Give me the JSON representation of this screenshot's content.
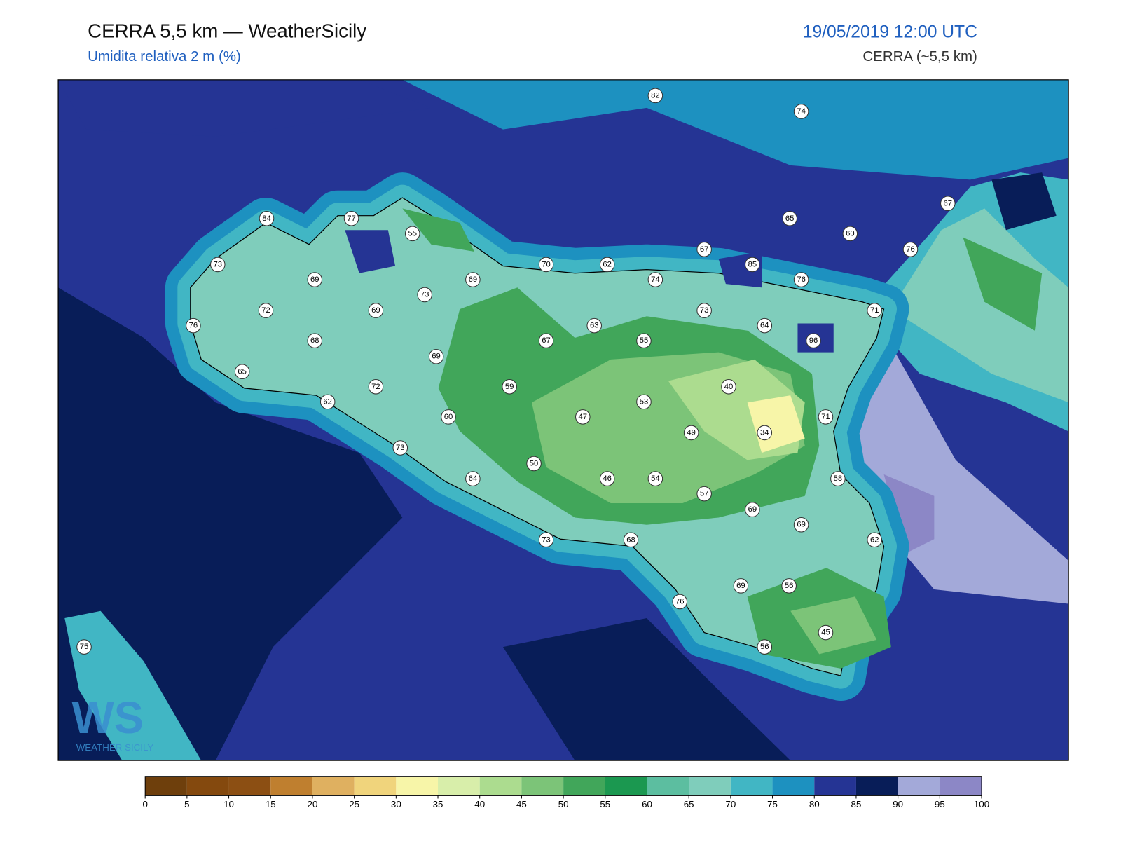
{
  "header": {
    "title": "CERRA 5,5 km — WeatherSicily",
    "subtitle": "Umidita relativa 2 m (%)",
    "datetime": "19/05/2019 12:00 UTC",
    "model": "CERRA (~5,5 km)"
  },
  "stations": [
    82,
    74,
    84,
    77,
    55,
    67,
    65,
    60,
    76,
    67,
    85,
    70,
    62,
    74,
    76,
    73,
    69,
    69,
    73,
    72,
    69,
    71,
    73,
    64,
    63,
    76,
    67,
    55,
    96,
    68,
    69,
    65,
    59,
    72,
    40,
    62,
    53,
    60,
    47,
    71,
    49,
    34,
    73,
    50,
    64,
    46,
    54,
    58,
    57,
    69,
    69,
    73,
    68,
    62,
    69,
    56,
    76,
    45,
    56,
    75
  ],
  "colorbar": {
    "ticks": [
      0,
      5,
      10,
      15,
      20,
      25,
      30,
      35,
      40,
      45,
      50,
      55,
      60,
      65,
      70,
      75,
      80,
      85,
      90,
      95,
      100
    ],
    "colors": [
      "#6e3f0c",
      "#84490e",
      "#8c4f13",
      "#bf7f2f",
      "#dfb060",
      "#f0d47c",
      "#f7f5a8",
      "#d8eeaa",
      "#acdc8f",
      "#7cc478",
      "#41a65a",
      "#1b9850",
      "#5cbea0",
      "#7fcdbb",
      "#41b6c4",
      "#1d91c0",
      "#253494",
      "#081d58",
      "#a3a9d9",
      "#8c87c6"
    ]
  },
  "logo": {
    "mark": "WS",
    "text": "WEATHER SICILY"
  }
}
